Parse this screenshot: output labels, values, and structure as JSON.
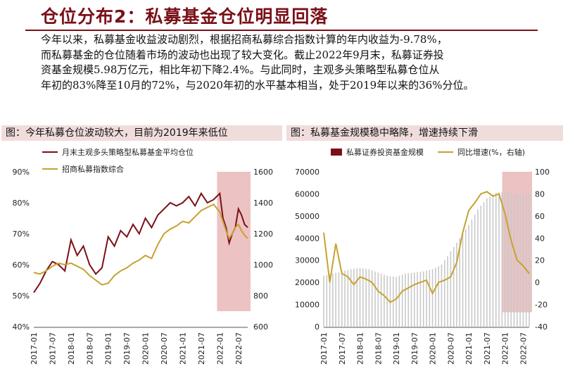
{
  "title": "仓位分布2：私募基金仓位明显回落",
  "paragraph": "今年以来，私募基金收益波动剧烈，根据招商私募综合指数计算的年内收益为-9.78%，\n而私募基金的仓位随着市场的波动也出现了较大变化。截止2022年9月末，私募证券投\n资基金规模5.98万亿元，相比年初下降2.4%。与此同时，主观多头策略型私募仓位从\n年初的83%降至10月的72%，与2020年初的水平基本相当，处于2019年以来的36%分位。",
  "colors": {
    "accent": "#7a1018",
    "gold": "#c6a231",
    "highlight": "#e8b3b3",
    "bars": "#c9c9c9"
  },
  "chart_data": [
    {
      "type": "line",
      "panel_title": "图：今年私募仓位波动较大，目前为2019年来低位",
      "x_labels": [
        "2017-01",
        "2017-07",
        "2018-01",
        "2018-07",
        "2019-01",
        "2019-07",
        "2020-01",
        "2020-07",
        "2021-01",
        "2021-07",
        "2022-01",
        "2022-07"
      ],
      "x_range": [
        "2017-01",
        "2022-10"
      ],
      "y_left": {
        "ticks": [
          "40%",
          "50%",
          "60%",
          "70%",
          "80%",
          "90%"
        ],
        "ylim": [
          40,
          90
        ]
      },
      "y_right": {
        "ticks": [
          "600",
          "800",
          "1000",
          "1200",
          "1400",
          "1600"
        ],
        "ylim": [
          600,
          1600
        ]
      },
      "highlight_range": [
        "2022-01",
        "2022-10"
      ],
      "series": [
        {
          "name": "月末主观多头策略型私募基金平均仓位",
          "axis": "left",
          "color": "#7a1018",
          "x": [
            "2017-01",
            "2017-03",
            "2017-05",
            "2017-07",
            "2017-09",
            "2017-11",
            "2018-01",
            "2018-03",
            "2018-05",
            "2018-07",
            "2018-09",
            "2018-11",
            "2019-01",
            "2019-03",
            "2019-05",
            "2019-07",
            "2019-09",
            "2019-11",
            "2020-01",
            "2020-03",
            "2020-05",
            "2020-07",
            "2020-09",
            "2020-11",
            "2021-01",
            "2021-03",
            "2021-05",
            "2021-07",
            "2021-09",
            "2021-11",
            "2022-01",
            "2022-02",
            "2022-03",
            "2022-04",
            "2022-05",
            "2022-06",
            "2022-07",
            "2022-08",
            "2022-09",
            "2022-10"
          ],
          "values": [
            51,
            54,
            58,
            61,
            60,
            58,
            68,
            63,
            66,
            60,
            57,
            59,
            69,
            66,
            71,
            69,
            73,
            70,
            75,
            72,
            76,
            78,
            80,
            79,
            80,
            82,
            79,
            83,
            80,
            81,
            83,
            75,
            72,
            67,
            70,
            72,
            78,
            76,
            73,
            72
          ]
        },
        {
          "name": "招商私募指数综合",
          "axis": "right",
          "color": "#c6a231",
          "x": [
            "2017-01",
            "2017-03",
            "2017-05",
            "2017-07",
            "2017-09",
            "2017-11",
            "2018-01",
            "2018-03",
            "2018-05",
            "2018-07",
            "2018-09",
            "2018-11",
            "2019-01",
            "2019-03",
            "2019-05",
            "2019-07",
            "2019-09",
            "2019-11",
            "2020-01",
            "2020-03",
            "2020-05",
            "2020-07",
            "2020-09",
            "2020-11",
            "2021-01",
            "2021-03",
            "2021-05",
            "2021-07",
            "2021-09",
            "2021-11",
            "2022-01",
            "2022-02",
            "2022-03",
            "2022-04",
            "2022-05",
            "2022-06",
            "2022-07",
            "2022-08",
            "2022-09",
            "2022-10"
          ],
          "values": [
            950,
            940,
            960,
            990,
            1010,
            1000,
            1010,
            990,
            970,
            930,
            900,
            870,
            880,
            930,
            960,
            980,
            1010,
            1030,
            1060,
            1040,
            1130,
            1200,
            1230,
            1250,
            1280,
            1270,
            1310,
            1350,
            1370,
            1390,
            1340,
            1280,
            1220,
            1170,
            1200,
            1240,
            1260,
            1220,
            1190,
            1170
          ]
        }
      ]
    },
    {
      "type": "bar",
      "panel_title": "图：私募基金规模稳中略降，增速持续下滑",
      "x_labels": [
        "2017-01",
        "2017-07",
        "2018-01",
        "2018-07",
        "2019-01",
        "2019-07",
        "2020-01",
        "2020-07",
        "2021-01",
        "2021-07",
        "2022-01",
        "2022-07"
      ],
      "x_range": [
        "2017-01",
        "2022-09"
      ],
      "y_left": {
        "ticks": [
          "0",
          "10000",
          "20000",
          "30000",
          "40000",
          "50000",
          "60000",
          "70000"
        ],
        "ylim": [
          0,
          70000
        ]
      },
      "y_right": {
        "ticks": [
          "-40",
          "-20",
          "0",
          "20",
          "40",
          "60",
          "80",
          "100"
        ],
        "ylim": [
          -40,
          100
        ]
      },
      "highlight_range": [
        "2022-01",
        "2022-09"
      ],
      "series": [
        {
          "name": "私募证券投资基金规模",
          "axis": "left",
          "color": "#7a1018",
          "x": [
            "2017-01",
            "2017-04",
            "2017-07",
            "2017-10",
            "2018-01",
            "2018-04",
            "2018-07",
            "2018-10",
            "2019-01",
            "2019-04",
            "2019-07",
            "2019-10",
            "2020-01",
            "2020-04",
            "2020-07",
            "2020-10",
            "2021-01",
            "2021-04",
            "2021-07",
            "2021-10",
            "2022-01",
            "2022-04",
            "2022-07",
            "2022-09"
          ],
          "values": [
            23000,
            24000,
            25000,
            26000,
            26500,
            26000,
            24500,
            23000,
            22500,
            24000,
            24500,
            25000,
            26000,
            28000,
            34000,
            40000,
            46000,
            53000,
            58000,
            60500,
            61000,
            60000,
            60500,
            59800
          ]
        },
        {
          "name": "同比增速(%，右轴)",
          "axis": "right",
          "color": "#c6a231",
          "x": [
            "2017-01",
            "2017-03",
            "2017-05",
            "2017-07",
            "2017-09",
            "2017-11",
            "2018-01",
            "2018-03",
            "2018-05",
            "2018-07",
            "2018-09",
            "2018-11",
            "2019-01",
            "2019-03",
            "2019-05",
            "2019-07",
            "2019-09",
            "2019-11",
            "2020-01",
            "2020-03",
            "2020-05",
            "2020-07",
            "2020-09",
            "2020-11",
            "2021-01",
            "2021-03",
            "2021-05",
            "2021-07",
            "2021-09",
            "2021-11",
            "2022-01",
            "2022-03",
            "2022-05",
            "2022-07",
            "2022-09"
          ],
          "values": [
            45,
            0,
            35,
            8,
            5,
            -2,
            5,
            3,
            0,
            -8,
            -12,
            -18,
            -15,
            -8,
            -5,
            -2,
            0,
            2,
            -10,
            0,
            2,
            5,
            18,
            45,
            65,
            72,
            80,
            82,
            78,
            80,
            62,
            38,
            20,
            15,
            8
          ]
        }
      ]
    }
  ]
}
